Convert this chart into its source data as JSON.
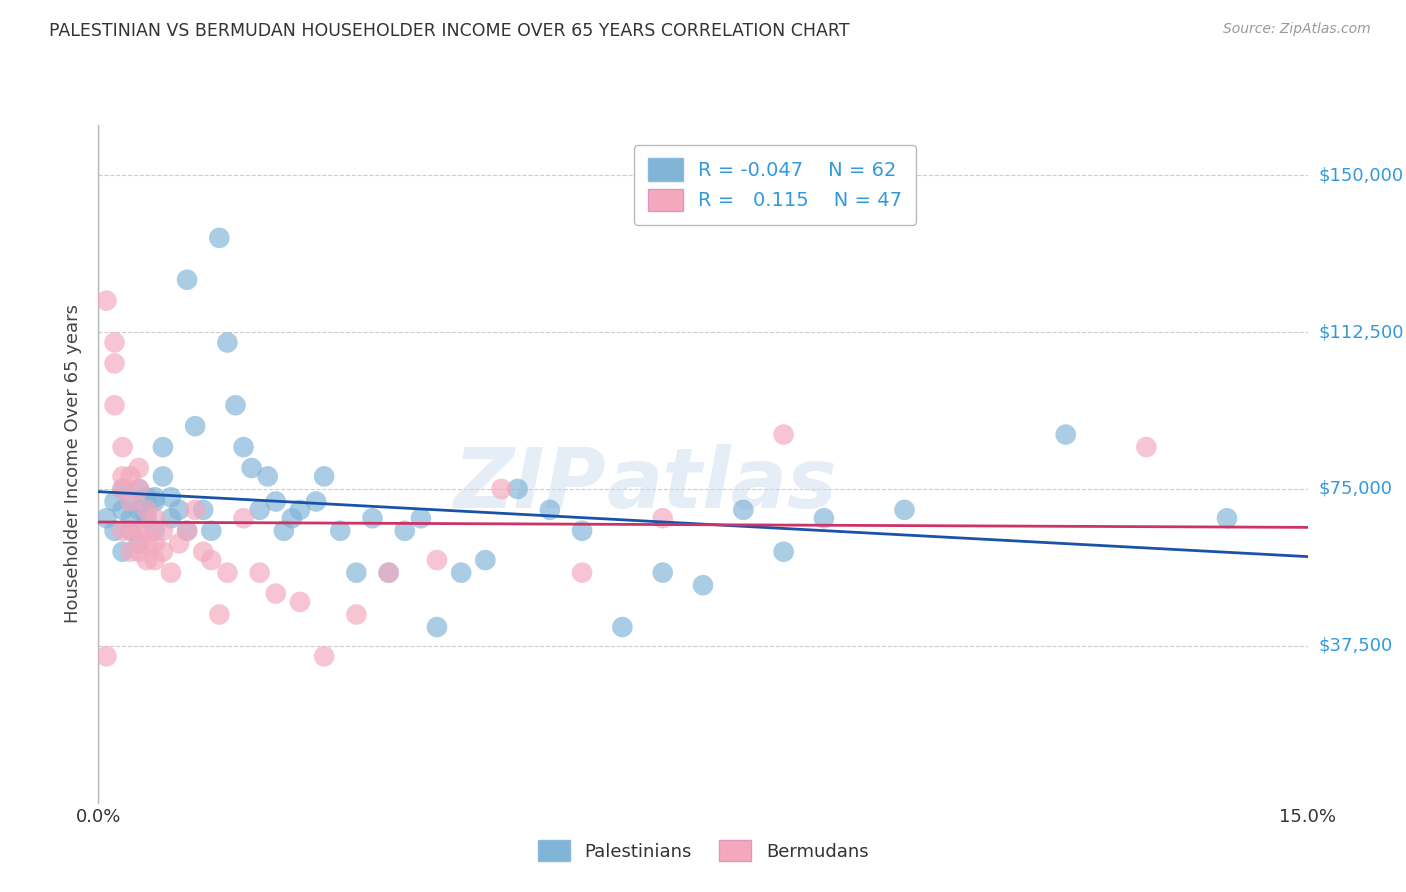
{
  "title": "PALESTINIAN VS BERMUDAN HOUSEHOLDER INCOME OVER 65 YEARS CORRELATION CHART",
  "source": "Source: ZipAtlas.com",
  "ylabel": "Householder Income Over 65 years",
  "watermark_zip": "ZIP",
  "watermark_atlas": "atlas",
  "legend_blue_R": "-0.047",
  "legend_blue_N": "62",
  "legend_pink_R": "0.115",
  "legend_pink_N": "47",
  "xlim": [
    0.0,
    0.15
  ],
  "ylim": [
    0,
    162000
  ],
  "blue_color": "#82b4d8",
  "pink_color": "#f4a8be",
  "blue_line_color": "#1a52a8",
  "pink_line_color": "#cc3366",
  "title_color": "#333333",
  "axis_label_color": "#444444",
  "tick_label_color_right": "#3399dd",
  "grid_color": "#cccccc",
  "ytick_vals": [
    0,
    37500,
    75000,
    112500,
    150000
  ],
  "ytick_labels": [
    "",
    "$37,500",
    "$75,000",
    "$112,500",
    "$150,000"
  ],
  "blue_scatter_x": [
    0.001,
    0.002,
    0.002,
    0.003,
    0.003,
    0.003,
    0.004,
    0.004,
    0.004,
    0.005,
    0.005,
    0.005,
    0.006,
    0.006,
    0.006,
    0.007,
    0.007,
    0.007,
    0.008,
    0.008,
    0.009,
    0.009,
    0.01,
    0.011,
    0.011,
    0.012,
    0.013,
    0.014,
    0.015,
    0.016,
    0.017,
    0.018,
    0.019,
    0.02,
    0.021,
    0.022,
    0.023,
    0.024,
    0.025,
    0.027,
    0.028,
    0.03,
    0.032,
    0.034,
    0.036,
    0.038,
    0.04,
    0.042,
    0.045,
    0.048,
    0.052,
    0.056,
    0.06,
    0.065,
    0.07,
    0.075,
    0.08,
    0.085,
    0.09,
    0.1,
    0.12,
    0.14
  ],
  "blue_scatter_y": [
    68000,
    72000,
    65000,
    70000,
    75000,
    60000,
    68000,
    72000,
    65000,
    70000,
    75000,
    62000,
    68000,
    73000,
    70000,
    72000,
    65000,
    73000,
    85000,
    78000,
    68000,
    73000,
    70000,
    125000,
    65000,
    90000,
    70000,
    65000,
    135000,
    110000,
    95000,
    85000,
    80000,
    70000,
    78000,
    72000,
    65000,
    68000,
    70000,
    72000,
    78000,
    65000,
    55000,
    68000,
    55000,
    65000,
    68000,
    42000,
    55000,
    58000,
    75000,
    70000,
    65000,
    42000,
    55000,
    52000,
    70000,
    60000,
    68000,
    70000,
    88000,
    68000
  ],
  "pink_scatter_x": [
    0.001,
    0.001,
    0.002,
    0.002,
    0.002,
    0.003,
    0.003,
    0.003,
    0.003,
    0.004,
    0.004,
    0.004,
    0.004,
    0.005,
    0.005,
    0.005,
    0.005,
    0.006,
    0.006,
    0.006,
    0.006,
    0.007,
    0.007,
    0.007,
    0.008,
    0.008,
    0.009,
    0.01,
    0.011,
    0.012,
    0.013,
    0.014,
    0.015,
    0.016,
    0.018,
    0.02,
    0.022,
    0.025,
    0.028,
    0.032,
    0.036,
    0.042,
    0.05,
    0.06,
    0.07,
    0.085,
    0.13
  ],
  "pink_scatter_y": [
    120000,
    35000,
    110000,
    105000,
    95000,
    85000,
    78000,
    75000,
    65000,
    78000,
    72000,
    65000,
    60000,
    80000,
    75000,
    65000,
    60000,
    70000,
    65000,
    62000,
    58000,
    68000,
    62000,
    58000,
    65000,
    60000,
    55000,
    62000,
    65000,
    70000,
    60000,
    58000,
    45000,
    55000,
    68000,
    55000,
    50000,
    48000,
    35000,
    45000,
    55000,
    58000,
    75000,
    55000,
    68000,
    88000,
    85000
  ]
}
